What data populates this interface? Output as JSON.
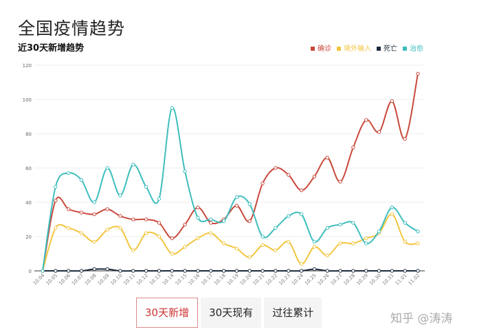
{
  "title": "全国疫情趋势",
  "subtitle": "近30天新增趋势",
  "buttons": [
    {
      "label": "30天新增",
      "active": true
    },
    {
      "label": "30天现有",
      "active": false
    },
    {
      "label": "过往累计",
      "active": false
    }
  ],
  "watermark": "知乎 @涛涛",
  "chart_data": {
    "type": "line",
    "smooth": true,
    "grid": true,
    "legend_position": "top-right",
    "ylim": [
      0,
      120
    ],
    "yticks": [
      0,
      20,
      40,
      60,
      80,
      100,
      120
    ],
    "categories": [
      "10.04",
      "10.05",
      "10.06",
      "10.07",
      "10.08",
      "10.09",
      "10.10",
      "10.11",
      "10.12",
      "10.13",
      "10.14",
      "10.15",
      "10.16",
      "10.17",
      "10.18",
      "10.19",
      "10.20",
      "10.21",
      "10.22",
      "10.23",
      "10.24",
      "10.25",
      "10.26",
      "10.27",
      "10.28",
      "10.29",
      "10.30",
      "10.31",
      "11.01",
      "11.02"
    ],
    "series": [
      {
        "name": "确诊",
        "color": "#c9483b",
        "values": [
          0,
          41,
          36,
          34,
          33,
          36,
          32,
          30,
          30,
          28,
          19,
          27,
          37,
          28,
          30,
          38,
          29,
          51,
          60,
          56,
          47,
          55,
          66,
          52,
          72,
          88,
          81,
          99,
          77,
          115
        ]
      },
      {
        "name": "境外输入",
        "color": "#f2c53d",
        "values": [
          0,
          25,
          25,
          22,
          17,
          24,
          25,
          12,
          22,
          20,
          10,
          14,
          19,
          22,
          16,
          13,
          8,
          15,
          12,
          17,
          4,
          14,
          9,
          16,
          16,
          19,
          22,
          33,
          17,
          16
        ]
      },
      {
        "name": "死亡",
        "color": "#1b2a3a",
        "values": [
          0,
          0,
          0,
          0,
          1,
          1,
          0,
          0,
          0,
          0,
          0,
          0,
          0,
          0,
          0,
          0,
          0,
          0,
          0,
          0,
          0,
          1,
          0,
          0,
          0,
          0,
          0,
          0,
          0,
          0
        ]
      },
      {
        "name": "治愈",
        "color": "#3dbdbd",
        "values": [
          0,
          49,
          57,
          53,
          40,
          60,
          44,
          62,
          49,
          42,
          95,
          58,
          31,
          30,
          29,
          43,
          39,
          20,
          25,
          32,
          33,
          17,
          25,
          27,
          28,
          16,
          23,
          37,
          28,
          23
        ]
      }
    ]
  }
}
